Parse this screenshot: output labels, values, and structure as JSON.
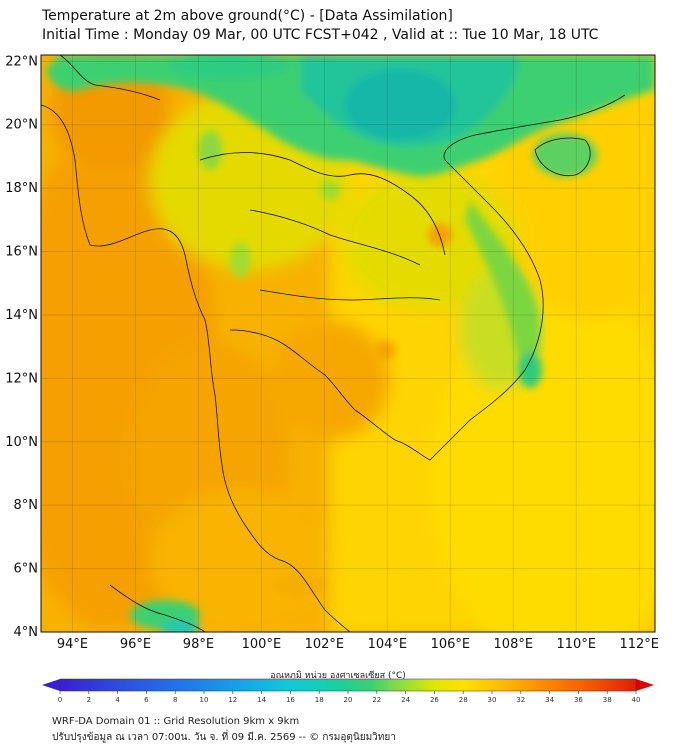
{
  "header": {
    "title_line1": "Temperature at 2m above ground(°C) - [Data Assimilation]",
    "title_line2": "Initial Time : Monday 09 Mar, 00 UTC FCST+042 , Valid at :: Tue 10 Mar, 18 UTC"
  },
  "map": {
    "lat_labels": [
      "22°N",
      "20°N",
      "18°N",
      "16°N",
      "14°N",
      "12°N",
      "10°N",
      "8°N",
      "6°N",
      "4°N"
    ],
    "lon_labels": [
      "94°E",
      "96°E",
      "98°E",
      "100°E",
      "102°E",
      "104°E",
      "106°E",
      "108°E",
      "110°E",
      "112°E"
    ],
    "lat_range": [
      4,
      22.2
    ],
    "lon_range": [
      93,
      112.5
    ],
    "dominant_colors": {
      "warm_orange": "#F5A300",
      "yellow": "#FFD800",
      "yellow_green": "#C8E000",
      "green": "#3CD070",
      "teal": "#19B7A0"
    }
  },
  "colorbar": {
    "title": "อุณหภูมิ หน่วย องศาเซลเซียส (°C)",
    "ticks": [
      "0",
      "2",
      "4",
      "6",
      "8",
      "10",
      "12",
      "14",
      "16",
      "18",
      "20",
      "22",
      "24",
      "26",
      "28",
      "30",
      "32",
      "34",
      "36",
      "38",
      "40"
    ],
    "range": [
      0,
      40
    ],
    "colors": [
      "#3A1FD0",
      "#2E4CE0",
      "#1F7AEB",
      "#16A6EB",
      "#14C8D8",
      "#18D0A0",
      "#3CD070",
      "#9ADE3C",
      "#DDE800",
      "#FFE000",
      "#FFC000",
      "#FF9000",
      "#F25A00",
      "#E02000"
    ]
  },
  "footer": {
    "line1": "WRF-DA Domain 01 :: Grid Resolution 9km x 9km",
    "line2": "ปรับปรุงข้อมูล ณ เวลา 07:00น. วัน จ. ที่ 09 มี.ค. 2569 -- © กรมอุตุนิยมวิทยา"
  }
}
